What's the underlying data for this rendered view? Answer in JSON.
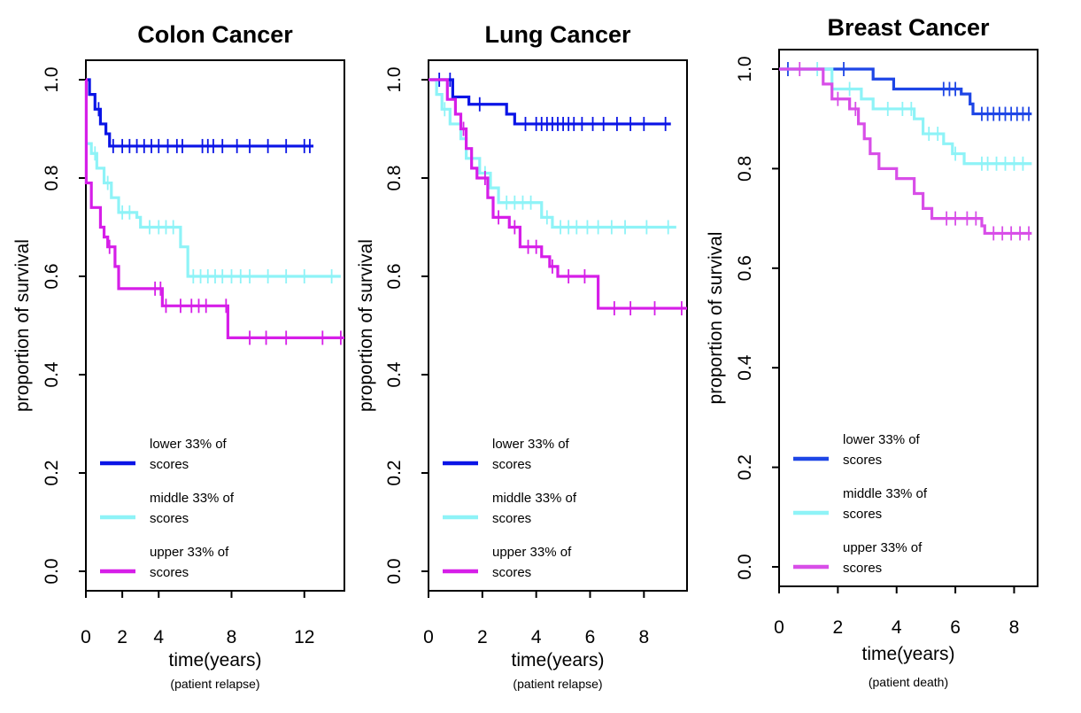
{
  "colors": {
    "lower": "#0a14e6",
    "middle": "#8ef3f7",
    "upper": "#d61ee8",
    "lower_breast": "#1e46e6",
    "upper_breast": "#d84ee8"
  },
  "chart_data": [
    {
      "type": "line",
      "title": "Colon Cancer",
      "xlabel": "time(years)",
      "subtitle": "(patient relapse)",
      "ylabel": "proportion of survival",
      "xlim": [
        0,
        14.2
      ],
      "ylim": [
        0,
        1.05
      ],
      "xticks": [
        0,
        2,
        4,
        8,
        12
      ],
      "xtick_labels": [
        "0",
        "2",
        "4",
        "8",
        "12"
      ],
      "yticks": [
        0.0,
        0.2,
        0.4,
        0.6,
        0.8,
        1.0
      ],
      "ytick_labels": [
        "0.0",
        "0.2",
        "0.4",
        "0.6",
        "0.8",
        "1.0"
      ],
      "legend_position": "bottom-left",
      "series": [
        {
          "name": "lower 33% of scores",
          "label_lines": [
            "lower 33% of",
            "scores"
          ],
          "color_key": "lower",
          "steps": [
            [
              0,
              1.0
            ],
            [
              0.2,
              0.97
            ],
            [
              0.5,
              0.94
            ],
            [
              0.8,
              0.91
            ],
            [
              1.1,
              0.89
            ],
            [
              1.3,
              0.865
            ],
            [
              12.5,
              0.865
            ]
          ],
          "censor": [
            0.7,
            1.5,
            2.0,
            2.4,
            2.8,
            3.2,
            3.6,
            4.0,
            4.5,
            5.0,
            5.3,
            6.4,
            6.7,
            7.0,
            7.5,
            8.3,
            9.0,
            10.0,
            11.0,
            12.0,
            12.3
          ]
        },
        {
          "name": "middle 33% of scores",
          "label_lines": [
            "middle 33% of",
            "scores"
          ],
          "color_key": "middle",
          "steps": [
            [
              0,
              0.87
            ],
            [
              0.3,
              0.85
            ],
            [
              0.6,
              0.82
            ],
            [
              1.0,
              0.79
            ],
            [
              1.4,
              0.76
            ],
            [
              1.8,
              0.73
            ],
            [
              2.8,
              0.72
            ],
            [
              3.0,
              0.7
            ],
            [
              5.2,
              0.66
            ],
            [
              5.6,
              0.6
            ],
            [
              14.0,
              0.6
            ]
          ],
          "censor": [
            0.5,
            1.2,
            2.0,
            2.4,
            3.5,
            4.0,
            4.4,
            4.8,
            5.9,
            6.3,
            6.7,
            7.1,
            7.5,
            8.0,
            8.5,
            9.0,
            10.0,
            11.0,
            12.0,
            13.5
          ]
        },
        {
          "name": "upper 33% of scores",
          "label_lines": [
            "upper 33% of",
            "scores"
          ],
          "color_key": "upper",
          "steps": [
            [
              0,
              1.0
            ],
            [
              0.02,
              0.79
            ],
            [
              0.3,
              0.74
            ],
            [
              0.8,
              0.7
            ],
            [
              1.0,
              0.68
            ],
            [
              1.2,
              0.66
            ],
            [
              1.6,
              0.62
            ],
            [
              1.8,
              0.575
            ],
            [
              4.2,
              0.54
            ],
            [
              7.8,
              0.475
            ],
            [
              14.2,
              0.475
            ]
          ],
          "censor": [
            1.3,
            3.8,
            4.1,
            4.4,
            5.2,
            5.8,
            6.2,
            6.6,
            7.7,
            9.0,
            9.9,
            11.0,
            13.0,
            14.0
          ]
        }
      ]
    },
    {
      "type": "line",
      "title": "Lung Cancer",
      "xlabel": "time(years)",
      "subtitle": "(patient relapse)",
      "ylabel": "proportion of survival",
      "xlim": [
        0,
        9.6
      ],
      "ylim": [
        0,
        1.05
      ],
      "xticks": [
        0,
        2,
        4,
        6,
        8
      ],
      "xtick_labels": [
        "0",
        "2",
        "4",
        "6",
        "8"
      ],
      "yticks": [
        0.0,
        0.2,
        0.4,
        0.6,
        0.8,
        1.0
      ],
      "ytick_labels": [
        "0.0",
        "0.2",
        "0.4",
        "0.6",
        "0.8",
        "1.0"
      ],
      "legend_position": "bottom-left",
      "series": [
        {
          "name": "lower 33% of scores",
          "label_lines": [
            "lower 33% of",
            "scores"
          ],
          "color_key": "lower",
          "steps": [
            [
              0,
              1.0
            ],
            [
              0.9,
              0.965
            ],
            [
              1.5,
              0.95
            ],
            [
              2.9,
              0.93
            ],
            [
              3.2,
              0.91
            ],
            [
              9.0,
              0.91
            ]
          ],
          "censor": [
            0.4,
            0.8,
            1.9,
            3.6,
            4.0,
            4.2,
            4.4,
            4.6,
            4.8,
            5.0,
            5.2,
            5.4,
            5.7,
            6.1,
            6.5,
            7.0,
            7.5,
            8.0,
            8.8
          ]
        },
        {
          "name": "middle 33% of scores",
          "label_lines": [
            "middle 33% of",
            "scores"
          ],
          "color_key": "middle",
          "steps": [
            [
              0,
              1.0
            ],
            [
              0.3,
              0.97
            ],
            [
              0.5,
              0.94
            ],
            [
              0.8,
              0.91
            ],
            [
              1.2,
              0.88
            ],
            [
              1.4,
              0.84
            ],
            [
              1.9,
              0.81
            ],
            [
              2.3,
              0.78
            ],
            [
              2.6,
              0.75
            ],
            [
              4.2,
              0.72
            ],
            [
              4.6,
              0.7
            ],
            [
              9.2,
              0.7
            ]
          ],
          "censor": [
            0.6,
            1.6,
            2.1,
            2.9,
            3.2,
            3.5,
            3.8,
            4.4,
            4.9,
            5.2,
            5.5,
            5.9,
            6.3,
            6.8,
            7.3,
            8.1,
            8.9
          ]
        },
        {
          "name": "upper 33% of scores",
          "label_lines": [
            "upper 33% of",
            "scores"
          ],
          "color_key": "upper",
          "steps": [
            [
              0,
              1.0
            ],
            [
              0.7,
              0.96
            ],
            [
              1.0,
              0.93
            ],
            [
              1.2,
              0.9
            ],
            [
              1.4,
              0.86
            ],
            [
              1.6,
              0.82
            ],
            [
              1.8,
              0.8
            ],
            [
              2.2,
              0.76
            ],
            [
              2.4,
              0.72
            ],
            [
              3.0,
              0.7
            ],
            [
              3.4,
              0.66
            ],
            [
              4.2,
              0.64
            ],
            [
              4.5,
              0.62
            ],
            [
              4.8,
              0.6
            ],
            [
              6.3,
              0.535
            ],
            [
              9.6,
              0.535
            ]
          ],
          "censor": [
            1.3,
            2.1,
            2.6,
            3.2,
            3.7,
            4.0,
            4.6,
            5.2,
            5.8,
            6.9,
            7.5,
            8.4,
            9.4
          ]
        }
      ]
    },
    {
      "type": "line",
      "title": "Breast Cancer",
      "xlabel": "time(years)",
      "subtitle": "(patient death)",
      "ylabel": "proportion of survival",
      "xlim": [
        0,
        8.8
      ],
      "ylim": [
        0,
        1.05
      ],
      "xticks": [
        0,
        2,
        4,
        6,
        8
      ],
      "xtick_labels": [
        "0",
        "2",
        "4",
        "6",
        "8"
      ],
      "yticks": [
        0.0,
        0.2,
        0.4,
        0.6,
        0.8,
        1.0
      ],
      "ytick_labels": [
        "0.0",
        "0.2",
        "0.4",
        "0.6",
        "0.8",
        "1.0"
      ],
      "legend_position": "bottom-left",
      "series": [
        {
          "name": "lower 33% of scores",
          "label_lines": [
            "lower 33% of",
            "scores"
          ],
          "color_key": "lower_breast",
          "steps": [
            [
              0,
              1.0
            ],
            [
              3.2,
              0.98
            ],
            [
              3.9,
              0.96
            ],
            [
              6.2,
              0.95
            ],
            [
              6.5,
              0.93
            ],
            [
              6.6,
              0.91
            ],
            [
              8.6,
              0.91
            ]
          ],
          "censor": [
            0.3,
            2.2,
            5.6,
            5.8,
            6.0,
            6.9,
            7.1,
            7.3,
            7.5,
            7.7,
            7.9,
            8.1,
            8.3,
            8.5
          ]
        },
        {
          "name": "middle 33% of scores",
          "label_lines": [
            "middle 33% of",
            "scores"
          ],
          "color_key": "middle",
          "steps": [
            [
              0,
              1.0
            ],
            [
              1.8,
              0.96
            ],
            [
              2.8,
              0.94
            ],
            [
              3.2,
              0.92
            ],
            [
              4.6,
              0.9
            ],
            [
              4.9,
              0.87
            ],
            [
              5.6,
              0.85
            ],
            [
              5.9,
              0.83
            ],
            [
              6.3,
              0.81
            ],
            [
              8.6,
              0.81
            ]
          ],
          "censor": [
            1.3,
            2.4,
            3.7,
            4.2,
            4.5,
            5.1,
            5.4,
            6.0,
            6.9,
            7.1,
            7.4,
            7.7,
            8.0,
            8.3
          ]
        },
        {
          "name": "upper 33% of scores",
          "label_lines": [
            "upper 33% of",
            "scores"
          ],
          "color_key": "upper_breast",
          "steps": [
            [
              0,
              1.0
            ],
            [
              1.5,
              0.97
            ],
            [
              1.8,
              0.94
            ],
            [
              2.4,
              0.92
            ],
            [
              2.7,
              0.89
            ],
            [
              2.9,
              0.86
            ],
            [
              3.1,
              0.83
            ],
            [
              3.4,
              0.8
            ],
            [
              4.0,
              0.78
            ],
            [
              4.6,
              0.75
            ],
            [
              4.9,
              0.72
            ],
            [
              5.2,
              0.7
            ],
            [
              6.9,
              0.685
            ],
            [
              7.0,
              0.67
            ],
            [
              8.6,
              0.67
            ]
          ],
          "censor": [
            0.7,
            2.0,
            2.6,
            5.7,
            6.0,
            6.4,
            6.7,
            7.3,
            7.6,
            7.9,
            8.2,
            8.5
          ]
        }
      ]
    }
  ]
}
